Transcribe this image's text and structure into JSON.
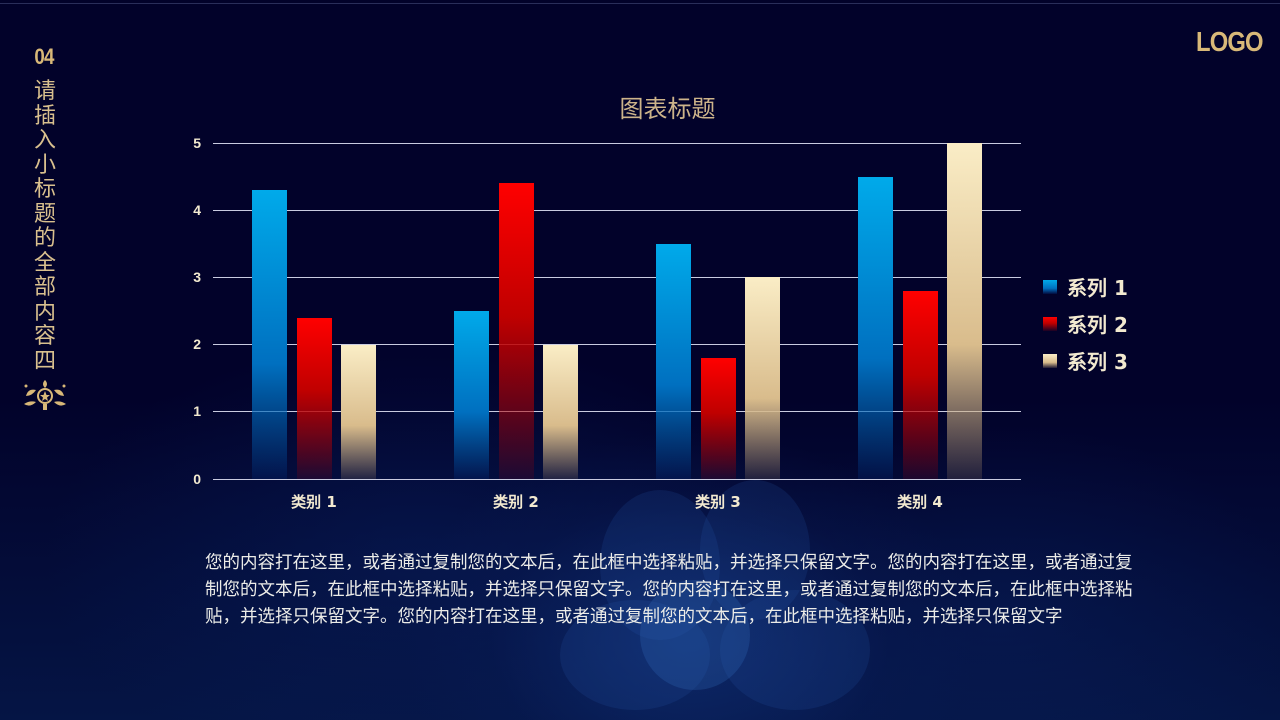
{
  "slide": {
    "section_number": "04",
    "vertical_title": "请插入小标题的全部内容四",
    "logo_text": "LOGO",
    "body_text": "您的内容打在这里，或者通过复制您的文本后，在此框中选择粘贴，并选择只保留文字。您的内容打在这里，或者通过复制您的文本后，在此框中选择粘贴，并选择只保留文字。您的内容打在这里，或者通过复制您的文本后，在此框中选择粘贴，并选择只保留文字。您的内容打在这里，或者通过复制您的文本后，在此框中选择粘贴，并选择只保留文字",
    "colors": {
      "background": "#02022a",
      "gold": "#d8b878",
      "series1": "#00aaea",
      "series2": "#ff0000",
      "series3": "#faedc6"
    }
  },
  "chart_data": {
    "type": "bar",
    "title": "图表标题",
    "categories": [
      "类别 1",
      "类别 2",
      "类别 3",
      "类别 4"
    ],
    "series": [
      {
        "name": "系列 1",
        "values": [
          4.3,
          2.5,
          3.5,
          4.5
        ]
      },
      {
        "name": "系列 2",
        "values": [
          2.4,
          4.4,
          1.8,
          2.8
        ]
      },
      {
        "name": "系列 3",
        "values": [
          2,
          2,
          3,
          5
        ]
      }
    ],
    "xlabel": "",
    "ylabel": "",
    "ylim": [
      0,
      5
    ],
    "yticks": [
      "0",
      "1",
      "2",
      "3",
      "4",
      "5"
    ],
    "grid": true,
    "legend_position": "right"
  }
}
